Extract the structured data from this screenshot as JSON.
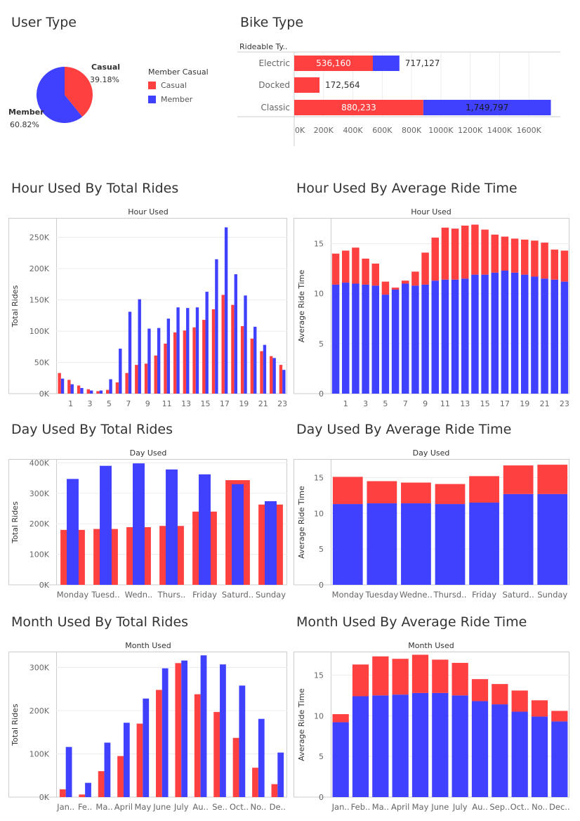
{
  "colors": {
    "casual": "#ff4040",
    "member": "#4040ff",
    "grid": "#ececec",
    "axis": "#cccccc",
    "tick": "#666666"
  },
  "legend": {
    "title": "Member Casual",
    "items": [
      "Casual",
      "Member"
    ]
  },
  "chart_data": [
    {
      "id": "user-type",
      "type": "pie",
      "title": "User Type",
      "slices": [
        {
          "label": "Casual",
          "pct_label": "39.18%",
          "value": 39.18,
          "color": "#ff4040"
        },
        {
          "label": "Member",
          "pct_label": "60.82%",
          "value": 60.82,
          "color": "#4040ff"
        }
      ]
    },
    {
      "id": "bike-type",
      "type": "bar",
      "orientation": "horizontal-stacked",
      "title": "Bike Type",
      "row_header": "Rideable Ty..",
      "categories": [
        "Electric",
        "Docked",
        "Classic"
      ],
      "series": [
        {
          "name": "Casual",
          "values": [
            536160,
            172564,
            880233
          ],
          "labels": [
            "536,160",
            "172,564",
            "880,233"
          ]
        },
        {
          "name": "Member",
          "values": [
            180967,
            0,
            869564
          ],
          "labels": [
            "",
            "",
            "1,749,797"
          ]
        }
      ],
      "totals_labels": [
        "717,127",
        "172,564",
        ""
      ],
      "xlim": [
        0,
        1800000
      ],
      "x_ticks": [
        0,
        200000,
        400000,
        600000,
        800000,
        1000000,
        1200000,
        1400000,
        1600000
      ],
      "x_tick_labels": [
        "0K",
        "200K",
        "400K",
        "600K",
        "800K",
        "1000K",
        "1200K",
        "1400K",
        "1600K"
      ]
    },
    {
      "id": "hour-total",
      "type": "bar",
      "title": "Hour Used By Total Rides",
      "header": "Hour Used",
      "ylabel": "Total Rides",
      "categories": [
        "0",
        "1",
        "2",
        "3",
        "4",
        "5",
        "6",
        "7",
        "8",
        "9",
        "10",
        "11",
        "12",
        "13",
        "14",
        "15",
        "16",
        "17",
        "18",
        "19",
        "20",
        "21",
        "22",
        "23"
      ],
      "x_tick_labels": [
        "",
        "1",
        "",
        "3",
        "",
        "5",
        "",
        "7",
        "",
        "9",
        "",
        "11",
        "",
        "13",
        "",
        "15",
        "",
        "17",
        "",
        "19",
        "",
        "21",
        "",
        "23"
      ],
      "series": [
        {
          "name": "Casual",
          "values": [
            33000,
            22000,
            13000,
            7000,
            4000,
            6000,
            18000,
            33000,
            46000,
            48000,
            61000,
            80000,
            98000,
            101000,
            106000,
            118000,
            135000,
            158000,
            142000,
            108000,
            88000,
            68000,
            60000,
            46000
          ]
        },
        {
          "name": "Member",
          "values": [
            24000,
            15000,
            9000,
            5000,
            5000,
            23000,
            72000,
            131000,
            151000,
            104000,
            105000,
            120000,
            138000,
            137000,
            138000,
            163000,
            215000,
            266000,
            191000,
            157000,
            107000,
            78000,
            57000,
            38000
          ]
        }
      ],
      "ylim": [
        0,
        280000
      ],
      "y_ticks": [
        0,
        50000,
        100000,
        150000,
        200000,
        250000
      ],
      "y_tick_labels": [
        "0K",
        "50K",
        "100K",
        "150K",
        "200K",
        "250K"
      ],
      "layout": "grouped"
    },
    {
      "id": "hour-avg",
      "type": "bar",
      "title": "Hour Used By Average Ride Time",
      "header": "Hour Used",
      "ylabel": "Average Ride Time",
      "categories": [
        "0",
        "1",
        "2",
        "3",
        "4",
        "5",
        "6",
        "7",
        "8",
        "9",
        "10",
        "11",
        "12",
        "13",
        "14",
        "15",
        "16",
        "17",
        "18",
        "19",
        "20",
        "21",
        "22",
        "23"
      ],
      "x_tick_labels": [
        "",
        "1",
        "",
        "3",
        "",
        "5",
        "",
        "7",
        "",
        "9",
        "",
        "11",
        "",
        "13",
        "",
        "15",
        "",
        "17",
        "",
        "19",
        "",
        "21",
        "",
        "23"
      ],
      "series": [
        {
          "name": "Member",
          "values": [
            10.9,
            11.1,
            11.0,
            10.9,
            10.8,
            9.9,
            10.4,
            11.0,
            10.8,
            10.9,
            11.3,
            11.4,
            11.4,
            11.5,
            11.9,
            11.9,
            12.1,
            12.3,
            12.1,
            11.9,
            11.7,
            11.5,
            11.4,
            11.2
          ]
        },
        {
          "name": "Casual",
          "values": [
            3.1,
            3.2,
            3.6,
            2.6,
            2.2,
            1.3,
            0.2,
            0.3,
            1.4,
            3.2,
            4.3,
            5.2,
            5.1,
            5.3,
            5.0,
            4.5,
            3.8,
            3.4,
            3.4,
            3.5,
            3.6,
            3.6,
            3.0,
            3.1
          ]
        }
      ],
      "ylim": [
        0,
        17.5
      ],
      "y_ticks": [
        0,
        5,
        10,
        15
      ],
      "y_tick_labels": [
        "0",
        "5",
        "10",
        "15"
      ],
      "layout": "stacked"
    },
    {
      "id": "day-total",
      "type": "bar",
      "title": "Day Used By Total Rides",
      "header": "Day Used",
      "ylabel": "Total Rides",
      "categories": [
        "Monday",
        "Tuesday",
        "Wednesday",
        "Thursday",
        "Friday",
        "Saturday",
        "Sunday"
      ],
      "x_tick_labels": [
        "Monday",
        "Tuesd..",
        "Wedn..",
        "Thurs..",
        "Friday",
        "Saturd..",
        "Sunday"
      ],
      "series": [
        {
          "name": "Casual",
          "values": [
            180000,
            183000,
            189000,
            193000,
            240000,
            343000,
            263000
          ]
        },
        {
          "name": "Member",
          "values": [
            347000,
            390000,
            398000,
            378000,
            362000,
            330000,
            274000
          ]
        }
      ],
      "ylim": [
        0,
        410000
      ],
      "y_ticks": [
        0,
        100000,
        200000,
        300000,
        400000
      ],
      "y_tick_labels": [
        "0K",
        "100K",
        "200K",
        "300K",
        "400K"
      ],
      "layout": "overlap"
    },
    {
      "id": "day-avg",
      "type": "bar",
      "title": "Day Used By Average Ride Time",
      "header": "Day Used",
      "ylabel": "Average Ride Time",
      "categories": [
        "Monday",
        "Tuesday",
        "Wednesday",
        "Thursday",
        "Friday",
        "Saturday",
        "Sunday"
      ],
      "x_tick_labels": [
        "Monday",
        "Tuesday",
        "Wedne..",
        "Thursd..",
        "Friday",
        "Saturd..",
        "Sunday"
      ],
      "series": [
        {
          "name": "Member",
          "values": [
            11.3,
            11.4,
            11.4,
            11.3,
            11.5,
            12.7,
            12.7
          ]
        },
        {
          "name": "Casual",
          "values": [
            3.8,
            3.1,
            2.9,
            2.8,
            3.7,
            4.0,
            4.1
          ]
        }
      ],
      "ylim": [
        0,
        17.5
      ],
      "y_ticks": [
        0,
        5,
        10,
        15
      ],
      "y_tick_labels": [
        "0",
        "5",
        "10",
        "15"
      ],
      "layout": "stacked"
    },
    {
      "id": "month-total",
      "type": "bar",
      "title": "Month Used By Total Rides",
      "header": "Month Used",
      "ylabel": "Total Rides",
      "categories": [
        "January",
        "February",
        "March",
        "April",
        "May",
        "June",
        "July",
        "August",
        "September",
        "October",
        "November",
        "December"
      ],
      "x_tick_labels": [
        "Jan..",
        "Fe..",
        "Ma..",
        "April",
        "May",
        "June",
        "July",
        "Au..",
        "Se..",
        "Oct..",
        "No..",
        "De.."
      ],
      "series": [
        {
          "name": "Casual",
          "values": [
            18000,
            6000,
            60000,
            95000,
            170000,
            248000,
            310000,
            238000,
            197000,
            137000,
            68000,
            30000
          ]
        },
        {
          "name": "Member",
          "values": [
            116000,
            33000,
            126000,
            172000,
            228000,
            298000,
            316000,
            328000,
            307000,
            258000,
            181000,
            103000
          ]
        }
      ],
      "ylim": [
        0,
        335000
      ],
      "y_ticks": [
        0,
        100000,
        200000,
        300000
      ],
      "y_tick_labels": [
        "0K",
        "100K",
        "200K",
        "300K"
      ],
      "layout": "grouped"
    },
    {
      "id": "month-avg",
      "type": "bar",
      "title": "Month Used By Average Ride Time",
      "header": "Month Used",
      "ylabel": "Average Ride Time",
      "categories": [
        "January",
        "February",
        "March",
        "April",
        "May",
        "June",
        "July",
        "August",
        "September",
        "October",
        "November",
        "December"
      ],
      "x_tick_labels": [
        "Jan..",
        "Feb..",
        "Ma..",
        "April",
        "May",
        "June",
        "July",
        "Au..",
        "Sep..",
        "Oct..",
        "No..",
        "Dec.."
      ],
      "series": [
        {
          "name": "Member",
          "values": [
            9.2,
            12.4,
            12.5,
            12.6,
            12.8,
            12.8,
            12.5,
            11.8,
            11.4,
            10.5,
            9.9,
            9.3
          ]
        },
        {
          "name": "Casual",
          "values": [
            1.0,
            3.9,
            4.8,
            4.4,
            4.7,
            4.1,
            4.0,
            2.7,
            2.5,
            2.6,
            2.0,
            1.3
          ]
        }
      ],
      "ylim": [
        0,
        17.8
      ],
      "y_ticks": [
        0,
        5,
        10,
        15
      ],
      "y_tick_labels": [
        "0",
        "5",
        "10",
        "15"
      ],
      "layout": "stacked"
    }
  ]
}
